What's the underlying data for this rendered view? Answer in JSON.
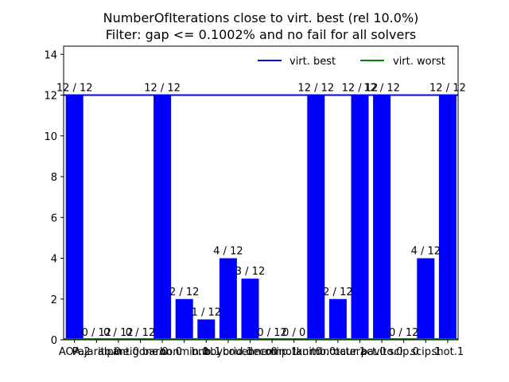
{
  "chart_data": {
    "type": "bar",
    "title_lines": [
      "NumberOfIterations close to virt. best (rel 10.0%)",
      "Filter: gap <= 0.1002% and no fail for all solvers"
    ],
    "xlabel": "",
    "ylabel": "",
    "ylim": [
      0,
      14.4
    ],
    "yticks": [
      0,
      2,
      4,
      6,
      8,
      10,
      12,
      14
    ],
    "categories": [
      "AOA.2",
      "Pajarito.0",
      "alpine.0",
      "antigone.0",
      "baron.0",
      "bonmin.0",
      "bnb.1",
      "bbybrid.1",
      "couenne.0",
      "decomp.1",
      "minotaur.0",
      "knitro.0",
      "minotaur.1",
      "octeract.0",
      "pavito.0",
      "scip.0",
      "scip.1",
      "shot.1"
    ],
    "values": [
      12,
      0,
      0,
      0,
      12,
      2,
      1,
      4,
      3,
      0,
      0,
      12,
      2,
      12,
      12,
      0,
      4,
      12
    ],
    "bar_labels": [
      "12 / 12",
      "0 / 12",
      "0 / 12",
      "0 / 12",
      "12 / 12",
      "2 / 12",
      "1 / 12",
      "4 / 12",
      "3 / 12",
      "0 / 12",
      "0 / 0",
      "12 / 12",
      "2 / 12",
      "12 / 12",
      "12 / 12",
      "0 / 12",
      "4 / 12",
      "12 / 12"
    ],
    "virt_best": 12,
    "virt_worst": 0,
    "legend": [
      "virt. best",
      "virt. worst"
    ],
    "legend_position": "top-right",
    "grid": false,
    "colors": {
      "bar": "#0000ff",
      "best_line": "#0000ff",
      "worst_line": "#008000"
    }
  }
}
